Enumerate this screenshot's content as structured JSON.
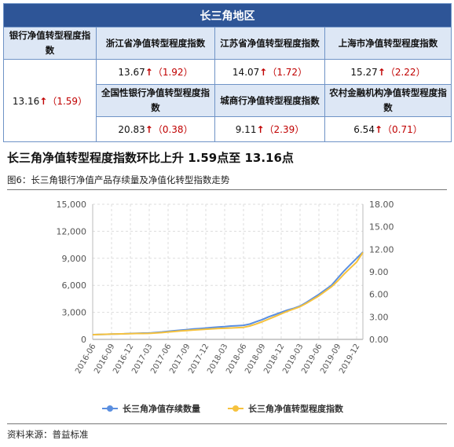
{
  "table": {
    "banner": "长三角地区",
    "bank_index": {
      "label": "银行净值转型程度指数",
      "value": "13.16",
      "change": "（1.59）"
    },
    "cells": [
      {
        "label": "浙江省净值转型程度指数",
        "value": "13.67",
        "change": "（1.92）"
      },
      {
        "label": "江苏省净值转型程度指数",
        "value": "14.07",
        "change": "（1.72）"
      },
      {
        "label": "上海市净值转型程度指数",
        "value": "15.27",
        "change": "（2.22）"
      },
      {
        "label": "全国性银行净值转型程度指数",
        "value": "20.83",
        "change": "（0.38）"
      },
      {
        "label": "城商行净值转型程度指数",
        "value": "9.11",
        "change": "（2.39）"
      },
      {
        "label": "农村金融机构净值转型程度指数",
        "value": "6.54",
        "change": "（0.71）"
      }
    ],
    "up_arrow": "↑"
  },
  "headline": "长三角净值转型程度指数环比上升 1.59点至 13.16点",
  "figure_title": "图6：长三角银行净值产品存续量及净值化转型指数走势",
  "source": "资料来源：普益标准",
  "colors": {
    "series_count": "#5b8fe0",
    "series_index": "#f6c23e",
    "banner": "#2e5597",
    "header_bg": "#dde7f5",
    "up": "#c00000"
  },
  "chart_data": {
    "type": "line",
    "title": "",
    "x": [
      "2016-06",
      "2016-07",
      "2016-08",
      "2016-09",
      "2016-10",
      "2016-11",
      "2016-12",
      "2017-01",
      "2017-02",
      "2017-03",
      "2017-04",
      "2017-05",
      "2017-06",
      "2017-07",
      "2017-08",
      "2017-09",
      "2017-10",
      "2017-11",
      "2017-12",
      "2018-01",
      "2018-02",
      "2018-03",
      "2018-04",
      "2018-05",
      "2018-06",
      "2018-07",
      "2018-08",
      "2018-09",
      "2018-10",
      "2018-11",
      "2018-12",
      "2019-01",
      "2019-02",
      "2019-03",
      "2019-04",
      "2019-05",
      "2019-06",
      "2019-07",
      "2019-08",
      "2019-09",
      "2019-10",
      "2019-11",
      "2019-12",
      "2020-01"
    ],
    "x_tick_labels": [
      "2016-06",
      "2016-09",
      "2016-12",
      "2017-03",
      "2017-06",
      "2017-09",
      "2017-12",
      "2018-03",
      "2018-06",
      "2018-09",
      "2018-12",
      "2019-03",
      "2019-06",
      "2019-09",
      "2019-12"
    ],
    "y_left": {
      "ticks": [
        "0",
        "3,000",
        "6,000",
        "9,000",
        "12,000",
        "15,000"
      ],
      "min": 0,
      "max": 15000
    },
    "y_right": {
      "ticks": [
        "0.00",
        "3.00",
        "6.00",
        "9.00",
        "12.00",
        "15.00",
        "18.00"
      ],
      "min": 0,
      "max": 18
    },
    "series": [
      {
        "name": "长三角净值存续数量",
        "axis": "left",
        "values": [
          520,
          540,
          560,
          580,
          600,
          620,
          650,
          680,
          700,
          700,
          760,
          820,
          900,
          960,
          1020,
          1080,
          1150,
          1200,
          1260,
          1320,
          1380,
          1420,
          1480,
          1520,
          1560,
          1700,
          1950,
          2200,
          2500,
          2750,
          3000,
          3250,
          3450,
          3700,
          4100,
          4550,
          5000,
          5500,
          6000,
          6800,
          7600,
          8300,
          9000,
          9700
        ]
      },
      {
        "name": "长三角净值转型程度指数",
        "axis": "right",
        "values": [
          0.62,
          0.65,
          0.68,
          0.7,
          0.72,
          0.74,
          0.76,
          0.78,
          0.79,
          0.8,
          0.85,
          0.9,
          0.98,
          1.05,
          1.12,
          1.18,
          1.25,
          1.3,
          1.35,
          1.4,
          1.45,
          1.48,
          1.52,
          1.56,
          1.6,
          1.78,
          2.05,
          2.35,
          2.7,
          3.05,
          3.4,
          3.75,
          4.05,
          4.35,
          4.8,
          5.3,
          5.8,
          6.4,
          7.0,
          7.8,
          8.7,
          9.5,
          10.3,
          11.57
        ]
      }
    ],
    "grid": true,
    "legend": "bottom"
  }
}
